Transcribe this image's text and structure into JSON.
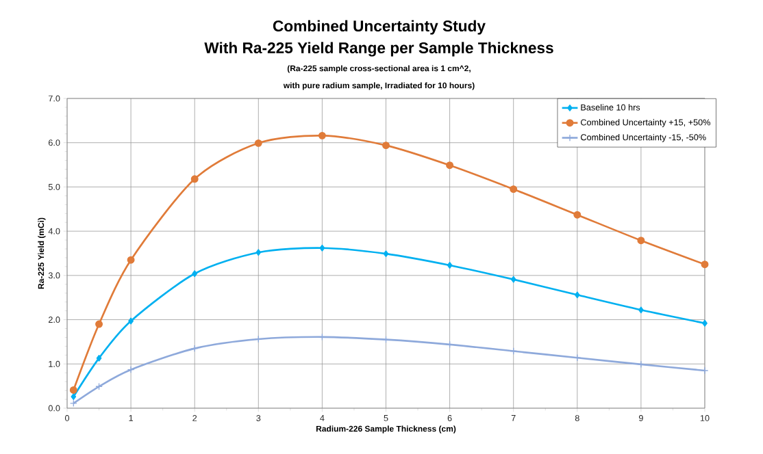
{
  "chart_data": {
    "type": "line",
    "title": "Combined Uncertainty Study",
    "subtitle": "With Ra-225 Yield Range per Sample Thickness",
    "annotations": [
      "(Ra-225 sample cross-sectional area is 1 cm^2,",
      "with pure radium sample, Irradiated for 10 hours)"
    ],
    "xlabel": "Radium-226  Sample Thickness (cm)",
    "ylabel": "Ra-225 Yield (mCi)",
    "x": [
      0.1,
      0.5,
      1,
      2,
      3,
      4,
      5,
      6,
      7,
      8,
      9,
      10
    ],
    "series": [
      {
        "name": "Baseline 10 hrs",
        "color": "#00b0f0",
        "marker": "diamond",
        "values": [
          0.26,
          1.13,
          1.97,
          3.04,
          3.52,
          3.62,
          3.49,
          3.23,
          2.91,
          2.56,
          2.22,
          1.92
        ]
      },
      {
        "name": "Combined Uncertainty +15, +50%",
        "color": "#e07b39",
        "marker": "circle",
        "values": [
          0.41,
          1.9,
          3.35,
          5.18,
          5.99,
          6.16,
          5.94,
          5.49,
          4.95,
          4.37,
          3.79,
          3.25
        ]
      },
      {
        "name": "Combined Uncertainty -15, -50%",
        "color": "#8ea9db",
        "marker": "cross",
        "values": [
          0.11,
          0.49,
          0.87,
          1.35,
          1.56,
          1.61,
          1.55,
          1.44,
          1.29,
          1.14,
          0.99,
          0.85
        ]
      }
    ],
    "xlim": [
      0,
      10
    ],
    "xticks": [
      0,
      1,
      2,
      3,
      4,
      5,
      6,
      7,
      8,
      9,
      10
    ],
    "ylim": [
      0,
      7
    ],
    "yticks": [
      {
        "value": 0,
        "label": "0.0"
      },
      {
        "value": 1,
        "label": "1.0"
      },
      {
        "value": 2,
        "label": "2.0"
      },
      {
        "value": 3,
        "label": "3.0"
      },
      {
        "value": 4,
        "label": "4.0"
      },
      {
        "value": 5,
        "label": "5.0"
      },
      {
        "value": 6,
        "label": "6.0"
      },
      {
        "value": 7,
        "label": "7.0"
      }
    ],
    "grid": true,
    "legend": "top right",
    "line_style": "solid"
  }
}
